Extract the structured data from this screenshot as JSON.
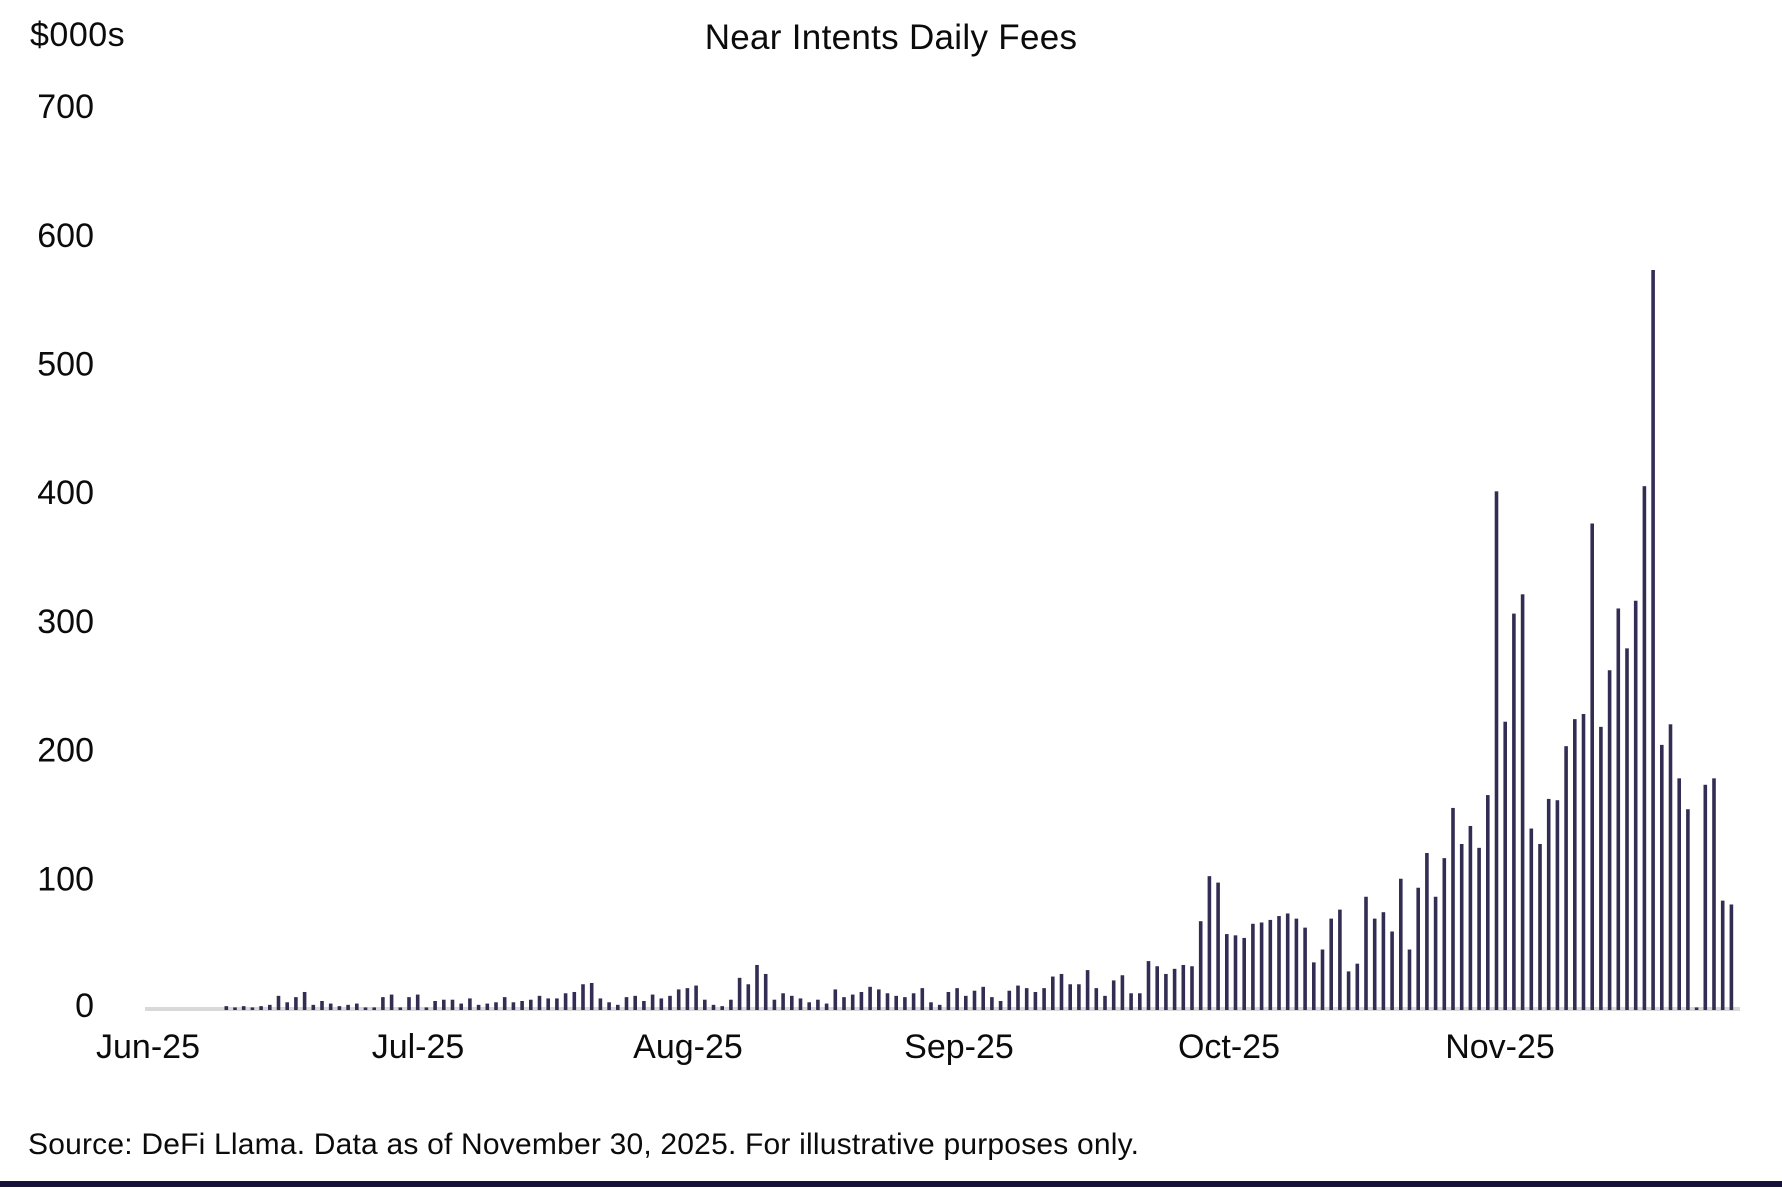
{
  "header": {
    "unit_label": "$000s",
    "title": "Near Intents Daily Fees"
  },
  "footer": {
    "source_text": "Source: DeFi Llama. Data as of November 30, 2025. For illustrative purposes only."
  },
  "colors": {
    "bar": "#332D54",
    "axis_line": "#D9D9D9",
    "text": "#0B0B0B",
    "bottom_strip": "#151138",
    "background": "#FFFFFF"
  },
  "chart_data": {
    "type": "bar",
    "title": "Near Intents Daily Fees",
    "ylabel": "$000s",
    "xlabel": "",
    "ylim": [
      0,
      700
    ],
    "y_ticks": [
      0,
      100,
      200,
      300,
      400,
      500,
      600,
      700
    ],
    "x_tick_labels": [
      "Jun-25",
      "Jul-25",
      "Aug-25",
      "Sep-25",
      "Oct-25",
      "Nov-25"
    ],
    "grid": false,
    "legend": "none",
    "start_date": "2025-06-01",
    "end_date": "2025-11-30",
    "frequency": "daily",
    "values": [
      0,
      0,
      0,
      0,
      0,
      0,
      0,
      0,
      0,
      3,
      2,
      3,
      2,
      3,
      4,
      11,
      6,
      10,
      14,
      4,
      7,
      5,
      3,
      4,
      5,
      2,
      2,
      10,
      12,
      2,
      10,
      12,
      2,
      7,
      8,
      8,
      5,
      9,
      4,
      5,
      6,
      10,
      6,
      7,
      8,
      11,
      9,
      9,
      13,
      14,
      20,
      21,
      9,
      6,
      4,
      10,
      11,
      7,
      12,
      9,
      11,
      16,
      17,
      19,
      8,
      4,
      3,
      8,
      25,
      20,
      35,
      28,
      8,
      13,
      11,
      9,
      6,
      8,
      5,
      16,
      10,
      12,
      14,
      18,
      16,
      13,
      11,
      10,
      13,
      17,
      6,
      4,
      14,
      17,
      11,
      15,
      18,
      10,
      7,
      15,
      19,
      17,
      14,
      17,
      26,
      28,
      20,
      20,
      31,
      17,
      11,
      23,
      27,
      13,
      13,
      38,
      34,
      28,
      32,
      35,
      34,
      69,
      104,
      99,
      59,
      58,
      56,
      67,
      68,
      70,
      73,
      75,
      71,
      64,
      37,
      47,
      71,
      78,
      30,
      36,
      88,
      71,
      76,
      61,
      102,
      47,
      95,
      122,
      88,
      118,
      157,
      129,
      143,
      126,
      167,
      403,
      224,
      308,
      323,
      141,
      129,
      164,
      163,
      205,
      226,
      230,
      378,
      220,
      264,
      312,
      281,
      318,
      407,
      575,
      206,
      222,
      180,
      156,
      2,
      175,
      180,
      85,
      82
    ]
  }
}
